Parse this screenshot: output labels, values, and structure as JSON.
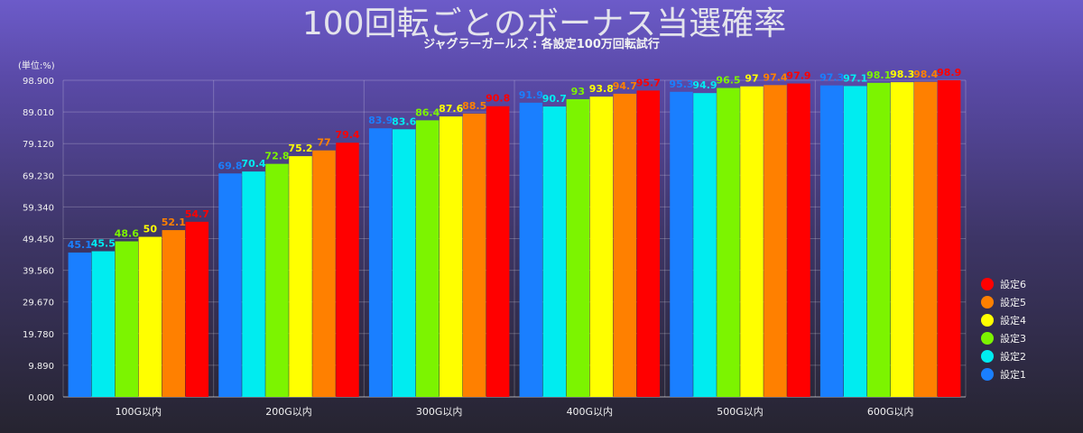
{
  "chart_data": {
    "type": "bar",
    "title": "100回転ごとのボーナス当選確率",
    "subtitle": "ジャグラーガールズ : 各設定100万回転試行",
    "y_unit_label": "(単位:%)",
    "ylim": [
      0,
      98.9
    ],
    "yticks": [
      "0.000",
      "9.890",
      "19.780",
      "29.670",
      "39.560",
      "49.450",
      "59.340",
      "69.230",
      "79.120",
      "89.010",
      "98.900"
    ],
    "categories": [
      "100G以内",
      "200G以内",
      "300G以内",
      "400G以内",
      "500G以内",
      "600G以内"
    ],
    "series": [
      {
        "name": "設定1",
        "color": "#1a7fff",
        "values": [
          45.1,
          69.8,
          83.9,
          91.9,
          95.3,
          97.3
        ]
      },
      {
        "name": "設定2",
        "color": "#00ecf0",
        "values": [
          45.5,
          70.4,
          83.6,
          90.7,
          94.9,
          97.1
        ]
      },
      {
        "name": "設定3",
        "color": "#7cf400",
        "values": [
          48.6,
          72.8,
          86.4,
          93.0,
          96.5,
          98.1
        ]
      },
      {
        "name": "設定4",
        "color": "#ffff00",
        "values": [
          50.0,
          75.2,
          87.6,
          93.8,
          97.0,
          98.3
        ]
      },
      {
        "name": "設定5",
        "color": "#ff8000",
        "values": [
          52.1,
          77.0,
          88.5,
          94.7,
          97.4,
          98.4
        ]
      },
      {
        "name": "設定6",
        "color": "#ff0000",
        "values": [
          54.7,
          79.4,
          90.8,
          95.7,
          97.9,
          98.9
        ]
      }
    ],
    "grid": true,
    "legend_position": "right",
    "legend_order": [
      "設定6",
      "設定5",
      "設定4",
      "設定3",
      "設定2",
      "設定1"
    ]
  }
}
